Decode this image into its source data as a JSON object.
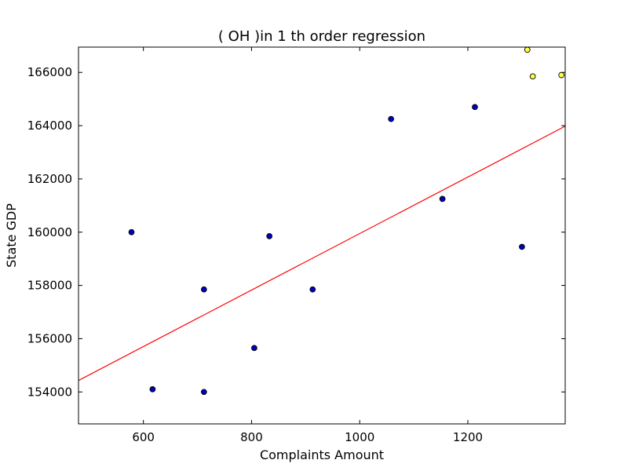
{
  "chart_data": {
    "type": "scatter",
    "title": "(  OH  )in 1 th order regression",
    "xlabel": "Complaints Amount",
    "ylabel": "State GDP",
    "xlim": [
      480,
      1380
    ],
    "ylim": [
      152800,
      166950
    ],
    "xticks": [
      600,
      800,
      1000,
      1200
    ],
    "yticks": [
      154000,
      156000,
      158000,
      160000,
      162000,
      164000,
      166000
    ],
    "grid": false,
    "series": [
      {
        "color": "#0000bf",
        "points": [
          {
            "x": 578,
            "y": 160000
          },
          {
            "x": 617,
            "y": 154100
          },
          {
            "x": 712,
            "y": 157850
          },
          {
            "x": 712,
            "y": 154000
          },
          {
            "x": 805,
            "y": 155650
          },
          {
            "x": 833,
            "y": 159850
          },
          {
            "x": 913,
            "y": 157850
          },
          {
            "x": 1058,
            "y": 164250
          },
          {
            "x": 1153,
            "y": 161250
          },
          {
            "x": 1213,
            "y": 164700
          },
          {
            "x": 1300,
            "y": 159450
          }
        ]
      },
      {
        "color": "#ffff40",
        "points": [
          {
            "x": 1310,
            "y": 166850
          },
          {
            "x": 1320,
            "y": 165850
          },
          {
            "x": 1373,
            "y": 165900
          }
        ]
      }
    ],
    "regression_line": {
      "color": "#ff0000",
      "points": [
        {
          "x": 480,
          "y": 154430
        },
        {
          "x": 1380,
          "y": 163980
        }
      ]
    }
  }
}
